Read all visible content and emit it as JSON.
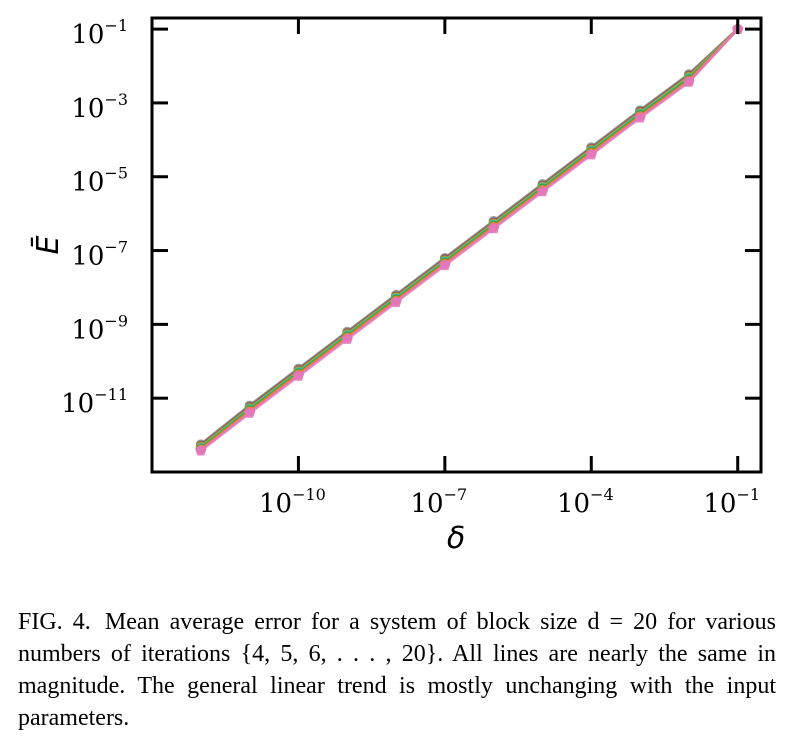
{
  "chart_data": {
    "type": "line",
    "xscale": "log",
    "yscale": "log",
    "xlim": [
      1e-13,
      0.3
    ],
    "ylim": [
      1e-13,
      0.2
    ],
    "x_ticks": [
      {
        "value": 1e-10,
        "base": "10",
        "exp": "−10"
      },
      {
        "value": 1e-07,
        "base": "10",
        "exp": "−7"
      },
      {
        "value": 0.0001,
        "base": "10",
        "exp": "−4"
      },
      {
        "value": 0.1,
        "base": "10",
        "exp": "−1"
      }
    ],
    "y_ticks": [
      {
        "value": 0.1,
        "base": "10",
        "exp": "−1"
      },
      {
        "value": 0.001,
        "base": "10",
        "exp": "−3"
      },
      {
        "value": 1e-05,
        "base": "10",
        "exp": "−5"
      },
      {
        "value": 1e-07,
        "base": "10",
        "exp": "−7"
      },
      {
        "value": 1e-09,
        "base": "10",
        "exp": "−9"
      },
      {
        "value": 1e-11,
        "base": "10",
        "exp": "−11"
      }
    ],
    "xlabel": "δ",
    "ylabel": "Ē",
    "grid": false,
    "x": [
      1e-12,
      1e-11,
      1e-10,
      1e-09,
      1e-08,
      1e-07,
      1e-06,
      1e-05,
      0.0001,
      0.001,
      0.01,
      0.1
    ],
    "series": [
      {
        "color": "#7f7f7f",
        "marker": "circle",
        "values": [
          5.6e-13,
          6.3e-12,
          6.3e-11,
          6.3e-10,
          6.3e-09,
          6.3e-08,
          6.3e-07,
          6.3e-06,
          6.3e-05,
          0.00063,
          0.006,
          0.1
        ]
      },
      {
        "color": "#8c564b",
        "marker": "circle",
        "values": [
          5.2e-13,
          5.8e-12,
          5.8e-11,
          5.8e-10,
          5.8e-09,
          5.8e-08,
          5.8e-07,
          5.8e-06,
          5.8e-05,
          0.00058,
          0.0055,
          0.1
        ]
      },
      {
        "color": "#bcbd22",
        "marker": "circle",
        "values": [
          4.8e-13,
          5.3e-12,
          5.3e-11,
          5.3e-10,
          5.3e-09,
          5.3e-08,
          5.3e-07,
          5.3e-06,
          5.3e-05,
          0.00053,
          0.005,
          0.1
        ]
      },
      {
        "color": "#17becf",
        "marker": "circle",
        "values": [
          4.5e-13,
          5e-12,
          5e-11,
          5e-10,
          5e-09,
          5e-08,
          5e-07,
          5e-06,
          5e-05,
          0.0005,
          0.0046,
          0.1
        ]
      },
      {
        "color": "#2ca02c",
        "marker": "circle",
        "values": [
          4.3e-13,
          4.7e-12,
          4.7e-11,
          4.7e-10,
          4.7e-09,
          4.7e-08,
          4.7e-07,
          4.7e-06,
          4.7e-05,
          0.00047,
          0.0043,
          0.1
        ]
      },
      {
        "color": "#ff7f0e",
        "marker": "circle",
        "values": [
          4.1e-13,
          4.4e-12,
          4.4e-11,
          4.4e-10,
          4.4e-09,
          4.4e-08,
          4.4e-07,
          4.4e-06,
          4.4e-05,
          0.00044,
          0.004,
          0.1
        ]
      },
      {
        "color": "#e377c2",
        "marker": "pentagon",
        "values": [
          3.8e-13,
          4e-12,
          4e-11,
          4e-10,
          4e-09,
          4e-08,
          4e-07,
          4e-06,
          4e-05,
          0.0004,
          0.0037,
          0.1
        ]
      }
    ]
  },
  "caption": {
    "label": "FIG. 4.",
    "text": "Mean average error for a system of block size d = 20 for various numbers of iterations {4, 5, 6, . . . , 20}.  All lines are nearly the same in magnitude.  The general linear trend is mostly unchanging with the input parameters."
  }
}
